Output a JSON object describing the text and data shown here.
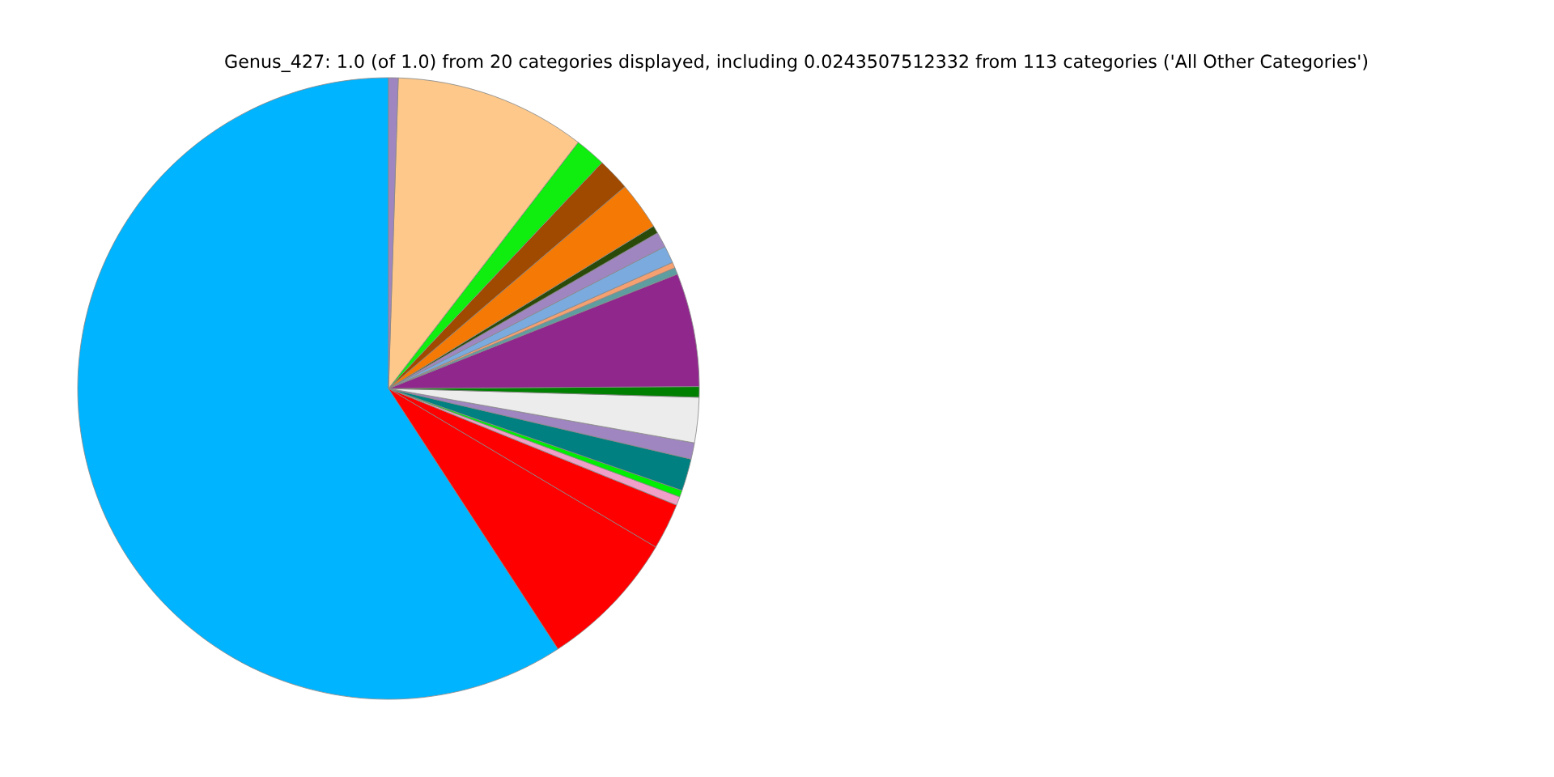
{
  "chart_data": {
    "type": "pie",
    "title": "Genus_427: 1.0 (of 1.0) from 20 categories displayed, including 0.0243507512332 from 113 categories ('All Other Categories')",
    "categories": [
      null,
      null,
      null,
      null,
      null,
      null,
      null,
      null,
      null,
      null,
      null,
      null,
      null,
      null,
      null,
      null,
      null,
      null,
      null,
      null
    ],
    "values": [
      59.18,
      7.3,
      2.4,
      0.45,
      0.35,
      1.67,
      0.85,
      2.35,
      0.55,
      5.9,
      0.35,
      0.3,
      0.9,
      0.8,
      0.4,
      2.5,
      1.7,
      1.6,
      9.95,
      0.5
    ],
    "colors": [
      "#00b4ff",
      "#ff0000",
      "#ff0000",
      "#f0a0c8",
      "#00ee00",
      "#008080",
      "#a086c0",
      "#ececec",
      "#008000",
      "#90278c",
      "#5f9ea0",
      "#f4a070",
      "#7aaade",
      "#a086c0",
      "#2a4a0a",
      "#f57a05",
      "#a04a00",
      "#10ee10",
      "#fdc88a",
      "#a086c0"
    ],
    "legend": false
  }
}
